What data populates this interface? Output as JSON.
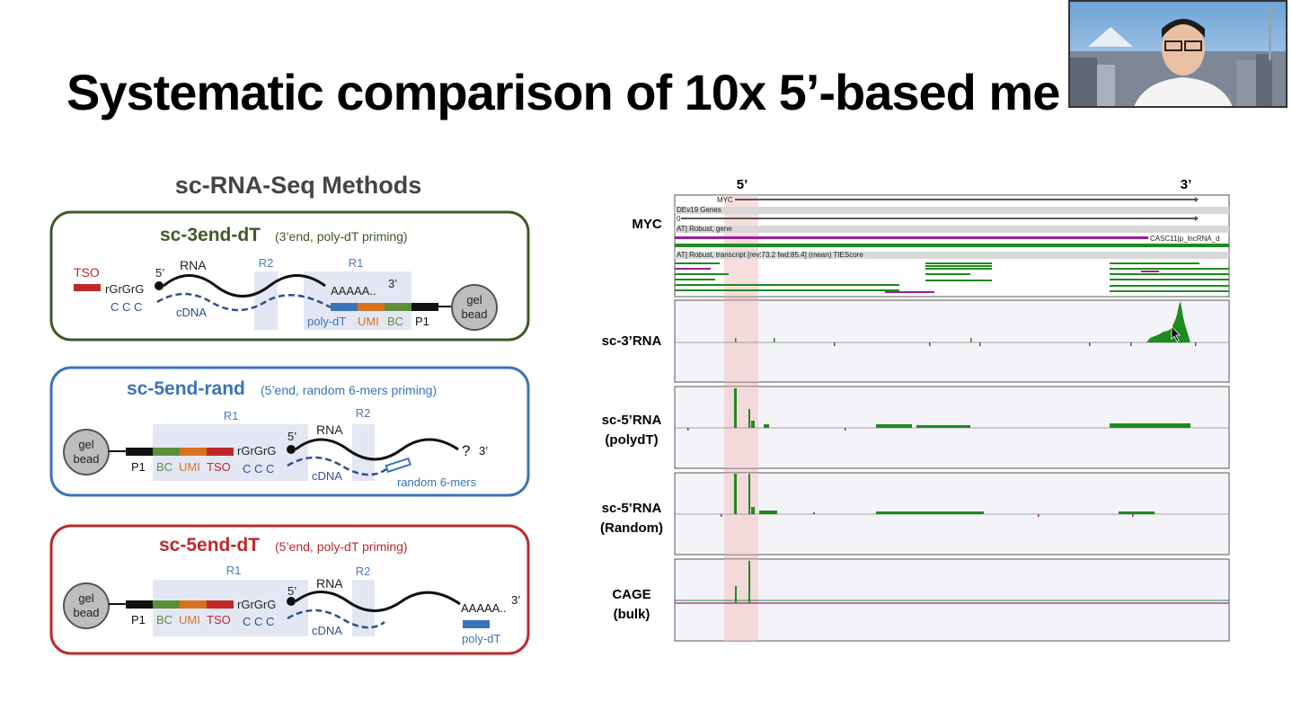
{
  "slide": {
    "title": "Systematic comparison of 10x 5’-based me"
  },
  "methods": {
    "heading": "sc-RNA-Seq Methods",
    "panel1": {
      "name": "sc-3end-dT",
      "desc": "(3’end, poly-dT priming)",
      "color": "#3e5a26",
      "tso": "TSO",
      "rgrgrg": "rGrGrG",
      "ccc": "C C C",
      "five": "5’",
      "rna": "RNA",
      "cdna": "cDNA",
      "r2": "R2",
      "r1": "R1",
      "aaaaa": "AAAAA..",
      "three": "3’",
      "polydt": "poly-dT",
      "umi": "UMI",
      "bc": "BC",
      "p1": "P1",
      "gel": "gel",
      "bead": "bead"
    },
    "panel2": {
      "name": "sc-5end-rand",
      "desc": "(5’end, random 6-mers priming)",
      "color": "#3b73b9",
      "r1": "R1",
      "r2": "R2",
      "five": "5’",
      "rna": "RNA",
      "gel": "gel",
      "bead": "bead",
      "p1": "P1",
      "bc": "BC",
      "umi": "UMI",
      "tso": "TSO",
      "rgrgrg": "rGrGrG",
      "ccc": "C C C",
      "cdna": "cDNA",
      "q": "?",
      "three": "3’",
      "random": "random 6-mers"
    },
    "panel3": {
      "name": "sc-5end-dT",
      "desc": "(5’end, poly-dT priming)",
      "color": "#c0282a",
      "r1": "R1",
      "r2": "R2",
      "five": "5’",
      "rna": "RNA",
      "gel": "gel",
      "bead": "bead",
      "p1": "P1",
      "bc": "BC",
      "umi": "UMI",
      "tso": "TSO",
      "rgrgrg": "rGrGrG",
      "ccc": "C C C",
      "cdna": "cDNA",
      "aaaaa": "AAAAA..",
      "three": "3’",
      "polydt": "poly-dT"
    }
  },
  "browser": {
    "five_label": "5’",
    "three_label": "3’",
    "gene": "MYC",
    "tracks": {
      "myc_small": "MYC",
      "gencode": "DEv19 Genes",
      "zero": "0",
      "robust_gene": "AT] Robust, gene",
      "casc11": "CASC11|p_lncRNA_d",
      "robust_tx": "AT] Robust, transcript [rev:73.2 fwd:85.4] (mean) TIEScore"
    },
    "rows": [
      {
        "label": "sc-3’RNA",
        "label2": ""
      },
      {
        "label": "sc-5’RNA",
        "label2": "(polydT)"
      },
      {
        "label": "sc-5’RNA",
        "label2": "(Random)"
      },
      {
        "label": "CAGE",
        "label2": "(bulk)"
      }
    ],
    "colors": {
      "signal": "#1f8a1f",
      "neg": "#9b1f9b",
      "highlight": "#f4c6c6"
    }
  }
}
